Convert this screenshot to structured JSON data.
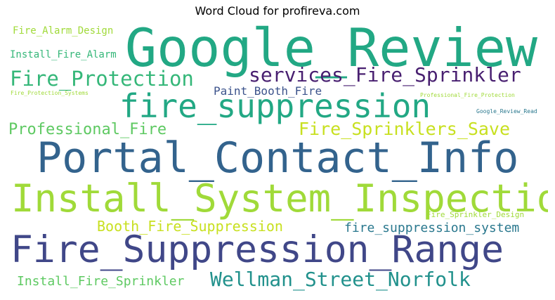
{
  "title": "Word Cloud for profireva.com",
  "chart_data": {
    "type": "wordcloud",
    "title": "Word Cloud for profireva.com",
    "words": [
      {
        "text": "Google_Review",
        "color": "#22a884"
      },
      {
        "text": "Portal_Contact_Info",
        "color": "#33638d"
      },
      {
        "text": "Fire_Suppression_Range",
        "color": "#404788"
      },
      {
        "text": "Install_System_Inspection",
        "color": "#a0da39"
      },
      {
        "text": "fire_suppression",
        "color": "#22a884"
      },
      {
        "text": "services_Fire_Sprinkler",
        "color": "#481f70"
      },
      {
        "text": "Fire_Protection",
        "color": "#35b779"
      },
      {
        "text": "Wellman_Street_Norfolk",
        "color": "#21918c"
      },
      {
        "text": "Fire_Sprinklers_Save",
        "color": "#c8e020"
      },
      {
        "text": "Professional_Fire",
        "color": "#5ec962"
      },
      {
        "text": "Booth_Fire_Suppression",
        "color": "#c8e020"
      },
      {
        "text": "fire_suppression_system",
        "color": "#2a788e"
      },
      {
        "text": "Install_Fire_Sprinkler",
        "color": "#5ec962"
      },
      {
        "text": "Paint_Booth_Fire",
        "color": "#3b528b"
      },
      {
        "text": "Fire_Alarm_Design",
        "color": "#a0da39"
      },
      {
        "text": "Install_Fire_Alarm",
        "color": "#35b779"
      },
      {
        "text": "Fire_Sprinkler_Design",
        "color": "#a0da39"
      },
      {
        "text": "Google_Review_Read",
        "color": "#2a788e"
      },
      {
        "text": "Fire_Protection_Systems",
        "color": "#a0da39"
      },
      {
        "text": "Professional_Fire_Protection",
        "color": "#a0da39"
      }
    ]
  }
}
